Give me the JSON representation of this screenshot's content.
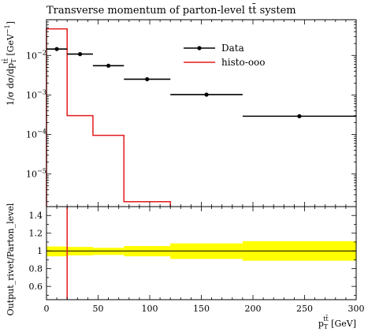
{
  "chart_data": {
    "type": "line",
    "title": "Transverse momentum of parton-level tt̄ system",
    "top_panel": {
      "ylabel": "1/σ dσ/dp_T^{tt̄} [GeV⁻¹]",
      "ylabel_parts": {
        "main": "1/σ dσ/dp",
        "sub": "T",
        "sup": "tt̄",
        "unit": " [GeV",
        "unit_sup": "−1",
        "close": "]"
      },
      "yscale": "log",
      "ylim": [
        1.5e-06,
        0.08
      ],
      "ytick_labels": [
        {
          "mant": "10",
          "exp": "−2",
          "value": 0.01
        },
        {
          "mant": "10",
          "exp": "−3",
          "value": 0.001
        },
        {
          "mant": "10",
          "exp": "−4",
          "value": 0.0001
        },
        {
          "mant": "10",
          "exp": "−5",
          "value": 1e-05
        }
      ]
    },
    "bottom_panel": {
      "ylabel": "Output_rivet/Parton_level",
      "ylim": [
        0.45,
        1.5
      ],
      "yticks": [
        0.6,
        0.8,
        1,
        1.2,
        1.4
      ],
      "ytick_labels": [
        "0.6",
        "0.8",
        "1",
        "1.2",
        "1.4"
      ],
      "band_color": "#ffff00",
      "band_edges": [
        0,
        20,
        45,
        75,
        120,
        190,
        300
      ],
      "band_low": [
        0.94,
        0.95,
        0.955,
        0.94,
        0.91,
        0.89
      ],
      "band_high": [
        1.05,
        1.045,
        1.035,
        1.055,
        1.085,
        1.11
      ],
      "reference_line": 1.0
    },
    "xlabel": "p_T^{tt̄} [GeV]",
    "xlabel_parts": {
      "main": "p",
      "sub": "T",
      "sup": "tt̄",
      "unit": " [GeV]"
    },
    "xlim": [
      0,
      300
    ],
    "xticks": [
      0,
      50,
      100,
      150,
      200,
      250,
      300
    ],
    "xtick_labels": [
      "0",
      "50",
      "100",
      "150",
      "200",
      "250",
      "300"
    ],
    "legend_position": "top-right",
    "series": [
      {
        "name": "Data",
        "style": "points-with-xerr",
        "color": "#000000",
        "points": [
          {
            "x": 10,
            "xlo": 0,
            "xhi": 20,
            "y": 0.0145
          },
          {
            "x": 32.5,
            "xlo": 20,
            "xhi": 45,
            "y": 0.0108
          },
          {
            "x": 60,
            "xlo": 45,
            "xhi": 75,
            "y": 0.0055
          },
          {
            "x": 97.5,
            "xlo": 75,
            "xhi": 120,
            "y": 0.0025
          },
          {
            "x": 155,
            "xlo": 120,
            "xhi": 190,
            "y": 0.00102
          },
          {
            "x": 245,
            "xlo": 190,
            "xhi": 300,
            "y": 0.00029
          }
        ]
      },
      {
        "name": "histo-ooo",
        "style": "step",
        "color": "#e31a1c",
        "edges": [
          0,
          20,
          45,
          75,
          120
        ],
        "values": [
          0.047,
          0.0003,
          9.5e-05,
          2e-06
        ]
      }
    ],
    "ratio_line": {
      "color": "#e31a1c",
      "x": 20
    }
  }
}
